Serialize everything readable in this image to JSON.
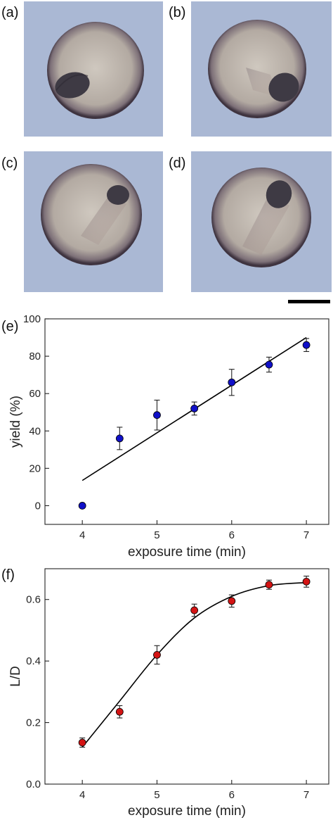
{
  "image_panels": [
    {
      "label": "(a)"
    },
    {
      "label": "(b)"
    },
    {
      "label": "(c)"
    },
    {
      "label": "(d)"
    }
  ],
  "colors": {
    "micrograph_background": "#aab8d4",
    "capsule_fill": "#b2a9a4",
    "capsule_rim": "#4a3f47",
    "bead": "#3e3a44",
    "series_e": "#1010c8",
    "series_f": "#d41414"
  },
  "chart_data": [
    {
      "panel_label": "(e)",
      "type": "scatter",
      "xlabel": "exposure time (min)",
      "ylabel": "yield (%)",
      "xlim": [
        3.5,
        7.3
      ],
      "ylim": [
        -10,
        100
      ],
      "xticks": [
        4,
        5,
        6,
        7
      ],
      "yticks": [
        0,
        20,
        40,
        60,
        80,
        100
      ],
      "grid": false,
      "points": [
        {
          "x": 4.0,
          "y": 0,
          "err": 0
        },
        {
          "x": 4.5,
          "y": 36,
          "err": 6
        },
        {
          "x": 5.0,
          "y": 48.5,
          "err": 8
        },
        {
          "x": 5.5,
          "y": 52,
          "err": 3.5
        },
        {
          "x": 6.0,
          "y": 66,
          "err": 7
        },
        {
          "x": 6.5,
          "y": 75.5,
          "err": 4
        },
        {
          "x": 7.0,
          "y": 86,
          "err": 3.5
        }
      ],
      "fit": {
        "type": "linear",
        "x": [
          4.0,
          7.0
        ],
        "y": [
          13.5,
          90
        ]
      }
    },
    {
      "panel_label": "(f)",
      "type": "scatter",
      "xlabel": "exposure time (min)",
      "ylabel": "L/D",
      "xlim": [
        3.5,
        7.3
      ],
      "ylim": [
        0,
        0.7
      ],
      "xticks": [
        4,
        5,
        6,
        7
      ],
      "yticks": [
        0.0,
        0.2,
        0.4,
        0.6
      ],
      "ytick_labels": [
        "0.0",
        "0.2",
        "0.4",
        "0.6"
      ],
      "grid": false,
      "points": [
        {
          "x": 4.0,
          "y": 0.135,
          "err": 0.015
        },
        {
          "x": 4.5,
          "y": 0.235,
          "err": 0.02
        },
        {
          "x": 5.0,
          "y": 0.42,
          "err": 0.03
        },
        {
          "x": 5.5,
          "y": 0.565,
          "err": 0.02
        },
        {
          "x": 6.0,
          "y": 0.595,
          "err": 0.02
        },
        {
          "x": 6.5,
          "y": 0.648,
          "err": 0.015
        },
        {
          "x": 7.0,
          "y": 0.658,
          "err": 0.018
        }
      ],
      "fit": {
        "type": "sigmoid",
        "x": [
          4.0,
          4.5,
          5.0,
          5.5,
          6.0,
          6.5,
          7.0
        ],
        "y": [
          0.12,
          0.27,
          0.42,
          0.54,
          0.61,
          0.645,
          0.655
        ]
      }
    }
  ]
}
